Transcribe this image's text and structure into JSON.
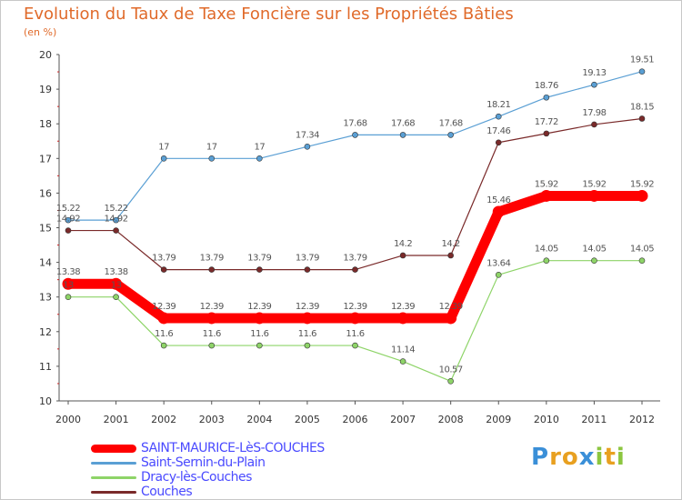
{
  "header": {
    "title": "Evolution du Taux de Taxe Foncière sur les Propriétés Bâties",
    "unit": "(en %)"
  },
  "logo": {
    "text": "Proxiti",
    "letters": [
      "P",
      "r",
      "o",
      "x",
      "i",
      "t",
      "i"
    ],
    "colors": [
      "#3a8fd8",
      "#e8a020",
      "#e8a020",
      "#3a8fd8",
      "#8cc63f",
      "#e8a020",
      "#8cc63f"
    ]
  },
  "chart_data": {
    "type": "line",
    "title": "Evolution du Taux de Taxe Foncière sur les Propriétés Bâties",
    "ylabel": "(en %)",
    "xlabel": "",
    "categories": [
      "2000",
      "2001",
      "2002",
      "2003",
      "2004",
      "2005",
      "2006",
      "2007",
      "2008",
      "2009",
      "2010",
      "2011",
      "2012"
    ],
    "ylim": [
      10,
      20
    ],
    "yticks": [
      10,
      11,
      12,
      13,
      14,
      15,
      16,
      17,
      18,
      19,
      20
    ],
    "grid": false,
    "legend_position": "bottom-left",
    "series": [
      {
        "name": "SAINT-MAURICE-LèS-COUCHES",
        "color": "#ff0000",
        "labelColor": "#4a4aff",
        "width": 11,
        "values": [
          13.38,
          13.38,
          12.39,
          12.39,
          12.39,
          12.39,
          12.39,
          12.39,
          12.39,
          15.46,
          15.92,
          15.92,
          15.92
        ]
      },
      {
        "name": "Saint-Sernin-du-Plain",
        "color": "#5a9fd4",
        "labelColor": "#4a4aff",
        "width": 1.2,
        "values": [
          15.22,
          15.22,
          17,
          17,
          17,
          17.34,
          17.68,
          17.68,
          17.68,
          18.21,
          18.76,
          19.13,
          19.51
        ]
      },
      {
        "name": "Dracy-lès-Couches",
        "color": "#8ed468",
        "labelColor": "#4a4aff",
        "width": 1.2,
        "values": [
          13,
          13,
          11.6,
          11.6,
          11.6,
          11.6,
          11.6,
          11.14,
          10.57,
          13.64,
          14.05,
          14.05,
          14.05
        ]
      },
      {
        "name": "Couches",
        "color": "#7a2a2a",
        "labelColor": "#4a4aff",
        "width": 1.2,
        "values": [
          14.92,
          14.92,
          13.79,
          13.79,
          13.79,
          13.79,
          13.79,
          14.2,
          14.2,
          17.46,
          17.72,
          17.98,
          18.15
        ]
      }
    ],
    "value_labels": [
      {
        "series": 1,
        "labels": [
          "15.22",
          "15.22",
          "17",
          "17",
          "17",
          "17.34",
          "17.68",
          "17.68",
          "17.68",
          "18.21",
          "18.76",
          "19.13",
          "19.51"
        ]
      },
      {
        "series": 3,
        "labels": [
          "14.92",
          "14.92",
          "13.79",
          "13.79",
          "13.79",
          "13.79",
          "13.79",
          "14.2",
          "14.2",
          "17.46",
          "17.72",
          "17.98",
          "18.15"
        ]
      },
      {
        "series": 0,
        "labels": [
          "13.38",
          "13.38",
          "12.39",
          "12.39",
          "12.39",
          "12.39",
          "12.39",
          "12.39",
          "12.39",
          "15.46",
          "15.92",
          "15.92",
          "15.92"
        ]
      },
      {
        "series": 2,
        "labels": [
          "13",
          "13",
          "11.6",
          "11.6",
          "11.6",
          "11.6",
          "11.6",
          "11.14",
          "10.57",
          "13.64",
          "14.05",
          "14.05",
          "14.05"
        ]
      }
    ]
  }
}
